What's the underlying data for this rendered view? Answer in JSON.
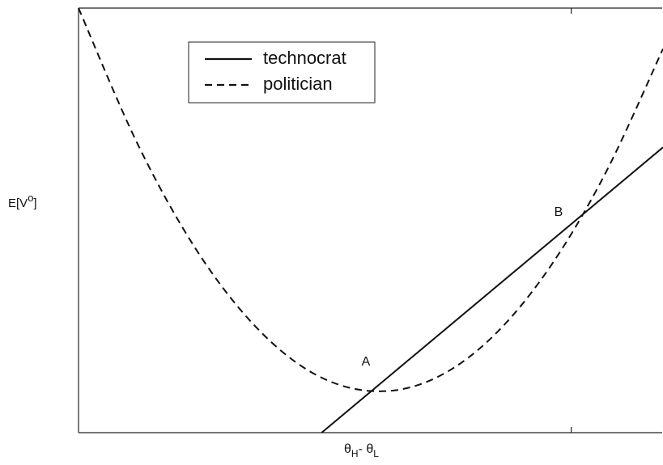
{
  "chart_data": {
    "type": "line",
    "x_label": [
      "θ",
      "H",
      "- θ",
      "L"
    ],
    "y_label": [
      "E[V",
      "o",
      "]"
    ],
    "xlim": [
      0,
      1
    ],
    "ylim": [
      0,
      1
    ],
    "xticks": [
      0.843
    ],
    "legend": "upper left",
    "annotations": [
      "A",
      "B"
    ],
    "series": [
      {
        "name": "technocrat",
        "color": "#111111",
        "dash": false,
        "x": [
          0.416,
          1
        ],
        "values": [
          0,
          0.672
        ]
      },
      {
        "name": "politician",
        "color": "#111111",
        "dash": true,
        "x": [
          0,
          0.1,
          0.2,
          0.3,
          0.4,
          0.5,
          0.6,
          0.7,
          0.8,
          0.9,
          1
        ],
        "values": [
          1.0,
          0.683,
          0.434,
          0.254,
          0.141,
          0.098,
          0.122,
          0.215,
          0.377,
          0.607,
          0.904
        ]
      }
    ]
  }
}
